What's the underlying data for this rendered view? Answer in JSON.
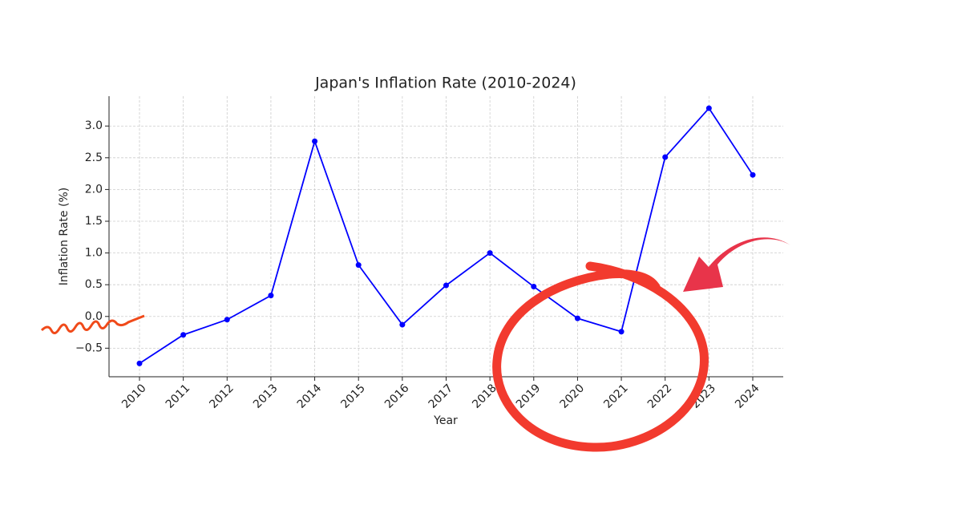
{
  "chart_data": {
    "type": "line",
    "title": "Japan's Inflation Rate (2010-2024)",
    "x_label": "Year",
    "y_label": "Inflation Rate (%)",
    "categories": [
      "2010",
      "2011",
      "2012",
      "2013",
      "2014",
      "2015",
      "2016",
      "2017",
      "2018",
      "2019",
      "2020",
      "2021",
      "2022",
      "2023",
      "2024"
    ],
    "series": [
      {
        "name": "Inflation Rate",
        "color": "#0000ff",
        "values": [
          -0.74,
          -0.29,
          -0.05,
          0.33,
          2.76,
          0.81,
          -0.13,
          0.49,
          1.0,
          0.47,
          -0.03,
          -0.24,
          2.51,
          3.28,
          2.23
        ]
      }
    ],
    "ylim": [
      -0.95,
      3.47
    ],
    "yticks": [
      {
        "value": -0.5,
        "label": "−0.5"
      },
      {
        "value": 0,
        "label": "0.0"
      },
      {
        "value": 0.5,
        "label": "0.5"
      },
      {
        "value": 1,
        "label": "1.0"
      },
      {
        "value": 1.5,
        "label": "1.5"
      },
      {
        "value": 2,
        "label": "2.0"
      },
      {
        "value": 2.5,
        "label": "2.5"
      },
      {
        "value": 3,
        "label": "3.0"
      }
    ],
    "grid": true
  }
}
